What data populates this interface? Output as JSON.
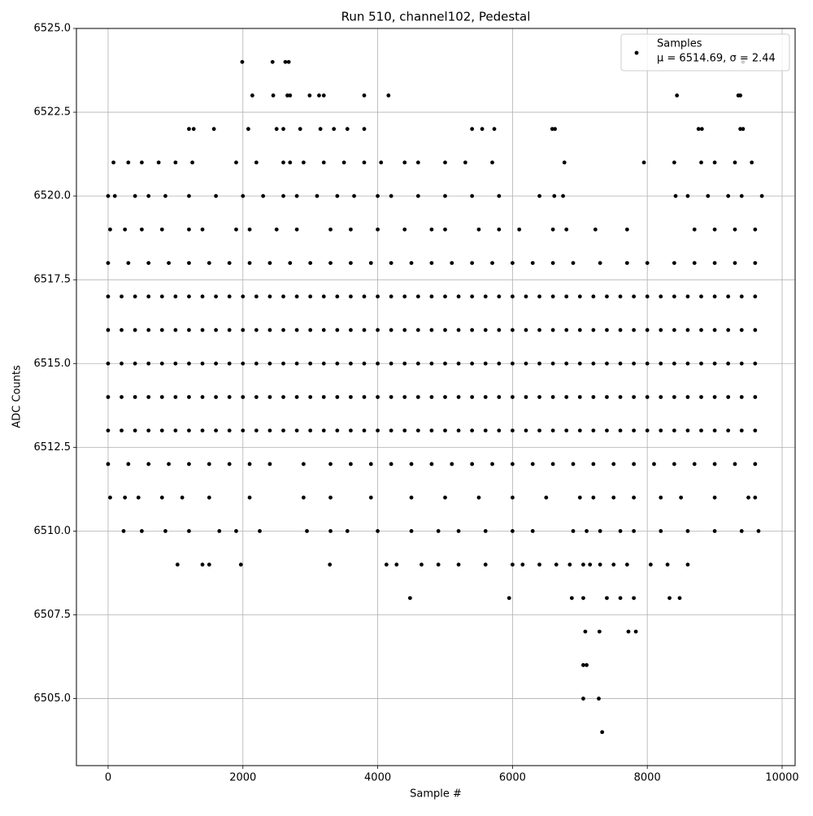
{
  "chart_data": {
    "type": "scatter",
    "title": "Run 510, channel102, Pedestal",
    "xlabel": "Sample #",
    "ylabel": "ADC Counts",
    "annotation": "μ = 6514.69, σ = 2.44",
    "legend": "upper right",
    "grid": true,
    "xlim": [
      -470,
      10193
    ],
    "ylim": [
      6503,
      6525
    ],
    "xticks": [
      0,
      2000,
      4000,
      6000,
      8000,
      10000
    ],
    "yticks": [
      {
        "value": 6505,
        "label": "6505.0"
      },
      6507.5,
      {
        "value": 6510,
        "label": "6510.0"
      },
      6512.5,
      {
        "value": 6515,
        "label": "6515.0"
      },
      6517.5,
      {
        "value": 6520,
        "label": "6520.0"
      },
      6522.5,
      {
        "value": 6525,
        "label": "6525.0"
      }
    ],
    "series": [
      {
        "name": "Samples",
        "color": "#000000",
        "x": [
          0,
          200,
          400,
          600,
          800,
          1000,
          1200,
          1400,
          1600,
          1800,
          2000,
          2200,
          2400,
          2600,
          2800,
          3000,
          3200,
          3400,
          3600,
          3800,
          4000,
          4200,
          4400,
          4600,
          4800,
          5000,
          5200,
          5400,
          5600,
          5800,
          6000,
          6200,
          6400,
          6600,
          6800,
          7000,
          7200,
          7400,
          7600,
          7800,
          8000,
          8200,
          8400,
          8600,
          8800,
          9000,
          9200,
          9400,
          9600,
          0,
          200,
          400,
          600,
          800,
          1000,
          1200,
          1400,
          1600,
          1800,
          2000,
          2200,
          2400,
          2600,
          2800,
          3000,
          3200,
          3400,
          3600,
          3800,
          4000,
          4200,
          4400,
          4600,
          4800,
          5000,
          5200,
          5400,
          5600,
          5800,
          6000,
          6200,
          6400,
          6600,
          6800,
          7000,
          7200,
          7400,
          7600,
          7800,
          8000,
          8200,
          8400,
          8600,
          8800,
          9000,
          9200,
          9400,
          9600,
          0,
          200,
          400,
          600,
          800,
          1000,
          1200,
          1400,
          1600,
          1800,
          2000,
          2200,
          2400,
          2600,
          2800,
          3000,
          3200,
          3400,
          3600,
          3800,
          4000,
          4200,
          4400,
          4600,
          4800,
          5000,
          5200,
          5400,
          5600,
          5800,
          6000,
          6200,
          6400,
          6600,
          6800,
          7000,
          7200,
          7400,
          7600,
          7800,
          8000,
          8200,
          8400,
          8600,
          8800,
          9000,
          9200,
          9400,
          9600,
          0,
          200,
          400,
          600,
          800,
          1000,
          1200,
          1400,
          1600,
          1800,
          2000,
          2200,
          2400,
          2600,
          2800,
          3000,
          3200,
          3400,
          3600,
          3800,
          4000,
          4200,
          4400,
          4600,
          4800,
          5000,
          5200,
          5400,
          5600,
          5800,
          6000,
          6200,
          6400,
          6600,
          6800,
          7000,
          7200,
          7400,
          7600,
          7800,
          8000,
          8200,
          8400,
          8600,
          8800,
          9000,
          9200,
          9400,
          9600,
          0,
          200,
          400,
          600,
          800,
          1000,
          1200,
          1400,
          1600,
          1800,
          2000,
          2200,
          2400,
          2600,
          2800,
          3000,
          3200,
          3400,
          3600,
          3800,
          4000,
          4200,
          4400,
          4600,
          4800,
          5000,
          5200,
          5400,
          5600,
          5800,
          6000,
          6200,
          6400,
          6600,
          6800,
          7000,
          7200,
          7400,
          7600,
          7800,
          8000,
          8200,
          8400,
          8600,
          8800,
          9000,
          9200,
          9400,
          9600,
          0,
          300,
          600,
          900,
          1200,
          1500,
          1800,
          2100,
          2400,
          2700,
          3000,
          3300,
          3600,
          3900,
          4200,
          4500,
          4800,
          5100,
          5400,
          5700,
          6000,
          6300,
          6600,
          6900,
          7300,
          7700,
          8000,
          8400,
          8700,
          9000,
          9300,
          9600,
          0,
          300,
          600,
          900,
          1200,
          1500,
          1800,
          2100,
          2400,
          2900,
          3300,
          3600,
          3900,
          4200,
          4500,
          4800,
          5100,
          5400,
          5700,
          6000,
          6300,
          6600,
          6900,
          7200,
          7500,
          7800,
          8100,
          8400,
          8700,
          9000,
          9300,
          9600,
          30,
          250,
          450,
          800,
          1100,
          1500,
          2100,
          2900,
          3300,
          3900,
          4500,
          5000,
          5500,
          6000,
          6500,
          7000,
          7200,
          7500,
          7800,
          8200,
          8500,
          9000,
          9500,
          9600,
          230,
          500,
          850,
          1200,
          1650,
          1900,
          2250,
          2950,
          3300,
          3550,
          4000,
          4500,
          4900,
          5200,
          5600,
          6000,
          6300,
          6900,
          7100,
          7300,
          7600,
          7800,
          8200,
          8600,
          9000,
          9400,
          9650,
          1030,
          1400,
          1500,
          1970,
          3290,
          4130,
          4280,
          4650,
          4900,
          5200,
          5600,
          6000,
          6150,
          6400,
          6650,
          6850,
          7050,
          7150,
          7300,
          7500,
          7700,
          8050,
          8300,
          8600,
          4480,
          5950,
          6880,
          7050,
          7400,
          7600,
          7800,
          8330,
          8480,
          7080,
          7290,
          7720,
          7830,
          7050,
          7100,
          7050,
          7280,
          7330,
          30,
          250,
          500,
          800,
          1200,
          1400,
          1900,
          2100,
          2500,
          2800,
          3300,
          3600,
          4000,
          4400,
          4800,
          5000,
          5500,
          5800,
          6100,
          6600,
          6800,
          7230,
          7700,
          8700,
          9000,
          9300,
          9600,
          0,
          100,
          400,
          600,
          850,
          1200,
          1600,
          2000,
          2300,
          2600,
          2800,
          3100,
          3400,
          3650,
          4000,
          4200,
          4600,
          5000,
          5400,
          5800,
          6400,
          6620,
          6750,
          8420,
          8600,
          8900,
          9200,
          9400,
          9700,
          80,
          300,
          500,
          750,
          1000,
          1250,
          1900,
          2200,
          2600,
          2700,
          2900,
          3200,
          3500,
          3800,
          4050,
          4400,
          4600,
          5000,
          5300,
          5700,
          6770,
          7950,
          8400,
          8800,
          9000,
          9300,
          9550,
          1200,
          1270,
          1570,
          2080,
          2500,
          2600,
          2850,
          3150,
          3350,
          3550,
          3800,
          5400,
          5550,
          5730,
          6590,
          6630,
          8760,
          8810,
          9380,
          9420,
          2140,
          2450,
          2660,
          2700,
          2990,
          3130,
          3200,
          3800,
          4160,
          8440,
          9350,
          9380,
          1990,
          2440,
          2630,
          2680,
          9420
        ],
        "values": [
          6517,
          6517,
          6517,
          6517,
          6517,
          6517,
          6517,
          6517,
          6517,
          6517,
          6517,
          6517,
          6517,
          6517,
          6517,
          6517,
          6517,
          6517,
          6517,
          6517,
          6517,
          6517,
          6517,
          6517,
          6517,
          6517,
          6517,
          6517,
          6517,
          6517,
          6517,
          6517,
          6517,
          6517,
          6517,
          6517,
          6517,
          6517,
          6517,
          6517,
          6517,
          6517,
          6517,
          6517,
          6517,
          6517,
          6517,
          6517,
          6517,
          6516,
          6516,
          6516,
          6516,
          6516,
          6516,
          6516,
          6516,
          6516,
          6516,
          6516,
          6516,
          6516,
          6516,
          6516,
          6516,
          6516,
          6516,
          6516,
          6516,
          6516,
          6516,
          6516,
          6516,
          6516,
          6516,
          6516,
          6516,
          6516,
          6516,
          6516,
          6516,
          6516,
          6516,
          6516,
          6516,
          6516,
          6516,
          6516,
          6516,
          6516,
          6516,
          6516,
          6516,
          6516,
          6516,
          6516,
          6516,
          6516,
          6515,
          6515,
          6515,
          6515,
          6515,
          6515,
          6515,
          6515,
          6515,
          6515,
          6515,
          6515,
          6515,
          6515,
          6515,
          6515,
          6515,
          6515,
          6515,
          6515,
          6515,
          6515,
          6515,
          6515,
          6515,
          6515,
          6515,
          6515,
          6515,
          6515,
          6515,
          6515,
          6515,
          6515,
          6515,
          6515,
          6515,
          6515,
          6515,
          6515,
          6515,
          6515,
          6515,
          6515,
          6515,
          6515,
          6515,
          6515,
          6515,
          6514,
          6514,
          6514,
          6514,
          6514,
          6514,
          6514,
          6514,
          6514,
          6514,
          6514,
          6514,
          6514,
          6514,
          6514,
          6514,
          6514,
          6514,
          6514,
          6514,
          6514,
          6514,
          6514,
          6514,
          6514,
          6514,
          6514,
          6514,
          6514,
          6514,
          6514,
          6514,
          6514,
          6514,
          6514,
          6514,
          6514,
          6514,
          6514,
          6514,
          6514,
          6514,
          6514,
          6514,
          6514,
          6514,
          6514,
          6514,
          6514,
          6513,
          6513,
          6513,
          6513,
          6513,
          6513,
          6513,
          6513,
          6513,
          6513,
          6513,
          6513,
          6513,
          6513,
          6513,
          6513,
          6513,
          6513,
          6513,
          6513,
          6513,
          6513,
          6513,
          6513,
          6513,
          6513,
          6513,
          6513,
          6513,
          6513,
          6513,
          6513,
          6513,
          6513,
          6513,
          6513,
          6513,
          6513,
          6513,
          6513,
          6513,
          6513,
          6513,
          6513,
          6513,
          6513,
          6513,
          6513,
          6513,
          6518,
          6518,
          6518,
          6518,
          6518,
          6518,
          6518,
          6518,
          6518,
          6518,
          6518,
          6518,
          6518,
          6518,
          6518,
          6518,
          6518,
          6518,
          6518,
          6518,
          6518,
          6518,
          6518,
          6518,
          6518,
          6518,
          6518,
          6518,
          6518,
          6518,
          6518,
          6518,
          6512,
          6512,
          6512,
          6512,
          6512,
          6512,
          6512,
          6512,
          6512,
          6512,
          6512,
          6512,
          6512,
          6512,
          6512,
          6512,
          6512,
          6512,
          6512,
          6512,
          6512,
          6512,
          6512,
          6512,
          6512,
          6512,
          6512,
          6512,
          6512,
          6512,
          6512,
          6512,
          6511,
          6511,
          6511,
          6511,
          6511,
          6511,
          6511,
          6511,
          6511,
          6511,
          6511,
          6511,
          6511,
          6511,
          6511,
          6511,
          6511,
          6511,
          6511,
          6511,
          6511,
          6511,
          6511,
          6511,
          6510,
          6510,
          6510,
          6510,
          6510,
          6510,
          6510,
          6510,
          6510,
          6510,
          6510,
          6510,
          6510,
          6510,
          6510,
          6510,
          6510,
          6510,
          6510,
          6510,
          6510,
          6510,
          6510,
          6510,
          6510,
          6510,
          6510,
          6509,
          6509,
          6509,
          6509,
          6509,
          6509,
          6509,
          6509,
          6509,
          6509,
          6509,
          6509,
          6509,
          6509,
          6509,
          6509,
          6509,
          6509,
          6509,
          6509,
          6509,
          6509,
          6509,
          6509,
          6508,
          6508,
          6508,
          6508,
          6508,
          6508,
          6508,
          6508,
          6508,
          6507,
          6507,
          6507,
          6507,
          6506,
          6506,
          6505,
          6505,
          6504,
          6519,
          6519,
          6519,
          6519,
          6519,
          6519,
          6519,
          6519,
          6519,
          6519,
          6519,
          6519,
          6519,
          6519,
          6519,
          6519,
          6519,
          6519,
          6519,
          6519,
          6519,
          6519,
          6519,
          6519,
          6519,
          6519,
          6519,
          6520,
          6520,
          6520,
          6520,
          6520,
          6520,
          6520,
          6520,
          6520,
          6520,
          6520,
          6520,
          6520,
          6520,
          6520,
          6520,
          6520,
          6520,
          6520,
          6520,
          6520,
          6520,
          6520,
          6520,
          6520,
          6520,
          6520,
          6520,
          6520,
          6521,
          6521,
          6521,
          6521,
          6521,
          6521,
          6521,
          6521,
          6521,
          6521,
          6521,
          6521,
          6521,
          6521,
          6521,
          6521,
          6521,
          6521,
          6521,
          6521,
          6521,
          6521,
          6521,
          6521,
          6521,
          6521,
          6521,
          6522,
          6522,
          6522,
          6522,
          6522,
          6522,
          6522,
          6522,
          6522,
          6522,
          6522,
          6522,
          6522,
          6522,
          6522,
          6522,
          6522,
          6522,
          6522,
          6522,
          6523,
          6523,
          6523,
          6523,
          6523,
          6523,
          6523,
          6523,
          6523,
          6523,
          6523,
          6523,
          6524,
          6524,
          6524,
          6524,
          6524
        ]
      }
    ]
  }
}
